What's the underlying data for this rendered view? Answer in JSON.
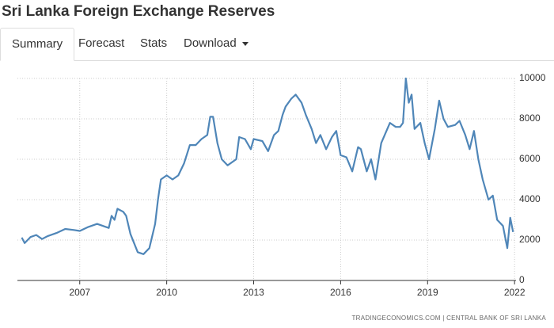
{
  "tabs": [
    "Summary",
    "Forecast",
    "Stats",
    "Download"
  ],
  "chart_data": {
    "type": "line",
    "title": "Sri Lanka Foreign Exchange Reserves",
    "source": "TRADINGECONOMICS.COM | CENTRAL BANK OF SRI LANKA",
    "x": [
      2005.0,
      2005.1,
      2005.3,
      2005.5,
      2005.7,
      2005.9,
      2006.2,
      2006.5,
      2006.8,
      2007.0,
      2007.3,
      2007.6,
      2007.9,
      2008.0,
      2008.1,
      2008.2,
      2008.3,
      2008.5,
      2008.6,
      2008.75,
      2009.0,
      2009.2,
      2009.4,
      2009.6,
      2009.7,
      2009.8,
      2010.0,
      2010.2,
      2010.4,
      2010.6,
      2010.8,
      2011.0,
      2011.2,
      2011.4,
      2011.5,
      2011.6,
      2011.75,
      2011.9,
      2012.1,
      2012.4,
      2012.5,
      2012.7,
      2012.9,
      2013.0,
      2013.3,
      2013.5,
      2013.7,
      2013.85,
      2014.0,
      2014.1,
      2014.3,
      2014.45,
      2014.65,
      2014.8,
      2015.0,
      2015.15,
      2015.3,
      2015.5,
      2015.7,
      2015.85,
      2016.0,
      2016.2,
      2016.4,
      2016.6,
      2016.7,
      2016.9,
      2017.05,
      2017.2,
      2017.4,
      2017.55,
      2017.7,
      2017.9,
      2018.05,
      2018.15,
      2018.25,
      2018.35,
      2018.45,
      2018.55,
      2018.75,
      2018.9,
      2019.05,
      2019.25,
      2019.4,
      2019.55,
      2019.7,
      2019.95,
      2020.1,
      2020.3,
      2020.45,
      2020.6,
      2020.75,
      2020.9,
      2021.1,
      2021.25,
      2021.4,
      2021.6,
      2021.75,
      2021.85,
      2021.95
    ],
    "series": [
      {
        "name": "Foreign Exchange Reserves",
        "color": "#4f86b8",
        "values": [
          2120,
          1850,
          2150,
          2250,
          2050,
          2200,
          2350,
          2550,
          2500,
          2450,
          2650,
          2800,
          2650,
          2600,
          3200,
          3000,
          3550,
          3400,
          3200,
          2300,
          1400,
          1300,
          1600,
          2800,
          4000,
          5000,
          5200,
          5000,
          5200,
          5800,
          6700,
          6700,
          7000,
          7200,
          8100,
          8100,
          6800,
          6000,
          5700,
          6000,
          7100,
          7000,
          6500,
          7000,
          6900,
          6400,
          7200,
          7400,
          8200,
          8600,
          9000,
          9200,
          8800,
          8200,
          7500,
          6800,
          7200,
          6500,
          7100,
          7400,
          6200,
          6100,
          5400,
          6600,
          6500,
          5400,
          6000,
          5000,
          6800,
          7300,
          7800,
          7600,
          7600,
          7800,
          10000,
          8800,
          9200,
          7500,
          7800,
          6800,
          6000,
          7500,
          8900,
          8000,
          7600,
          7700,
          7900,
          7200,
          6500,
          7400,
          6000,
          5000,
          4000,
          4200,
          3000,
          2700,
          1600,
          3100,
          2400
        ]
      }
    ],
    "xlim": [
      2004.85,
      2022.05
    ],
    "xticks": [
      2007,
      2010,
      2013,
      2016,
      2019,
      2022
    ],
    "ylim": [
      0,
      10000
    ],
    "yticks": [
      0,
      2000,
      4000,
      6000,
      8000,
      10000
    ],
    "grid": true
  }
}
